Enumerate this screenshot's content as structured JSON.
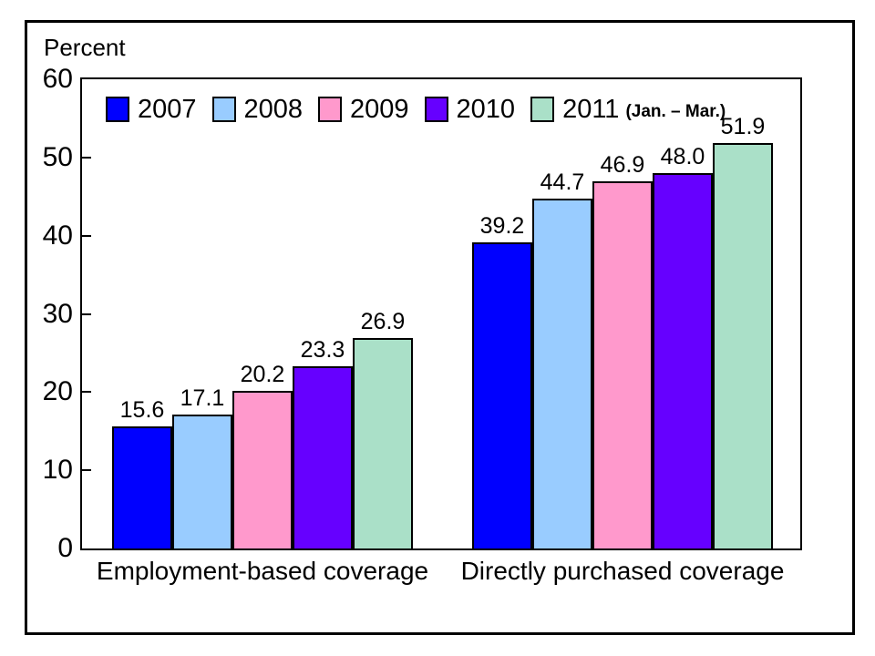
{
  "chart_data": {
    "type": "bar",
    "title": "",
    "ylabel": "Percent",
    "xlabel": "",
    "ylim": [
      0,
      60
    ],
    "yticks": [
      0,
      10,
      20,
      30,
      40,
      50,
      60
    ],
    "grid": false,
    "legend_position": "top-left-inside",
    "categories": [
      "Employment-based coverage",
      "Directly purchased coverage"
    ],
    "series": [
      {
        "name": "2007",
        "suffix": "",
        "color": "#0000FF",
        "values": [
          15.6,
          39.2
        ]
      },
      {
        "name": "2008",
        "suffix": "",
        "color": "#99CCFF",
        "values": [
          17.1,
          44.7
        ]
      },
      {
        "name": "2009",
        "suffix": "",
        "color": "#FF99CC",
        "values": [
          20.2,
          46.9
        ]
      },
      {
        "name": "2010",
        "suffix": "",
        "color": "#6600FF",
        "values": [
          23.3,
          48.0
        ]
      },
      {
        "name": "2011",
        "suffix": "(Jan. – Mar.)",
        "color": "#AAE0C8",
        "values": [
          26.9,
          51.9
        ]
      }
    ],
    "colors": {
      "axis": "#000000",
      "frame_border": "#000000",
      "background": "#FFFFFF",
      "text": "#000000"
    }
  }
}
